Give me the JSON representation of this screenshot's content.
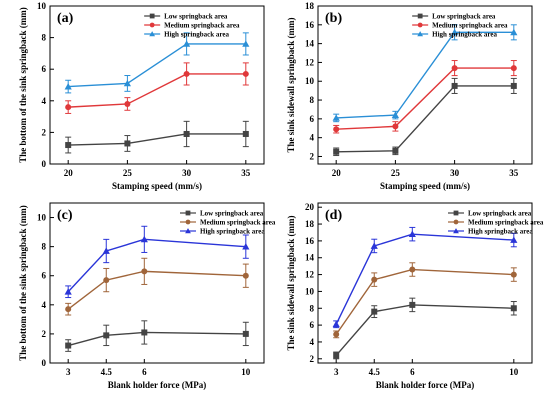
{
  "colors": {
    "low": "#444444",
    "medium": "#e0383a",
    "high": "#2a8fd6",
    "medium_bottom": "#a0653a",
    "high_bottom": "#2a35d8"
  },
  "chart_data": [
    {
      "panel": "(a)",
      "type": "line",
      "x": [
        20,
        25,
        30,
        35
      ],
      "xticks": [
        "20",
        "25",
        "30",
        "35"
      ],
      "xlabel": "Stamping speed (mm/s)",
      "ylabel": "The bottom of the sink springback (mm)",
      "ylim": [
        0,
        10
      ],
      "yticks": [
        "0",
        "2",
        "4",
        "6",
        "8",
        "10"
      ],
      "legend": "top-left",
      "series": [
        {
          "name": "Low springback area",
          "values": [
            1.2,
            1.3,
            1.9,
            1.9
          ],
          "error": [
            0.5,
            0.5,
            0.8,
            0.8
          ],
          "marker": "square",
          "color": "low"
        },
        {
          "name": "Medium springback area",
          "values": [
            3.6,
            3.8,
            5.7,
            5.7
          ],
          "error": [
            0.4,
            0.4,
            0.7,
            0.7
          ],
          "marker": "circle",
          "color": "medium"
        },
        {
          "name": "High springback area",
          "values": [
            4.9,
            5.1,
            7.6,
            7.6
          ],
          "error": [
            0.4,
            0.5,
            0.7,
            0.7
          ],
          "marker": "triangle",
          "color": "high"
        }
      ]
    },
    {
      "panel": "(b)",
      "type": "line",
      "x": [
        20,
        25,
        30,
        35
      ],
      "xticks": [
        "20",
        "25",
        "30",
        "35"
      ],
      "xlabel": "Stamping speed (mm/s)",
      "ylabel": "The sink sidewall springback (mm)",
      "ylim": [
        1.2,
        18
      ],
      "yticks": [
        "2",
        "4",
        "6",
        "8",
        "10",
        "12",
        "14",
        "16",
        "18"
      ],
      "legend": "top-left",
      "series": [
        {
          "name": "Low springback area",
          "values": [
            2.5,
            2.6,
            9.5,
            9.5
          ],
          "error": [
            0.4,
            0.4,
            0.8,
            0.8
          ],
          "marker": "square",
          "color": "low"
        },
        {
          "name": "Medium springback area",
          "values": [
            4.9,
            5.2,
            11.4,
            11.4
          ],
          "error": [
            0.4,
            0.5,
            0.8,
            0.8
          ],
          "marker": "circle",
          "color": "medium"
        },
        {
          "name": "High springback area",
          "values": [
            6.1,
            6.4,
            15.2,
            15.2
          ],
          "error": [
            0.4,
            0.4,
            0.8,
            0.8
          ],
          "marker": "triangle",
          "color": "high"
        }
      ]
    },
    {
      "panel": "(c)",
      "type": "line",
      "x": [
        3,
        4.5,
        6,
        10
      ],
      "xticks": [
        "3",
        "4.5",
        "6",
        "10"
      ],
      "xlabel": "Blank holder force (MPa)",
      "ylabel": "The bottom of the sink springback (mm)",
      "ylim": [
        0,
        11
      ],
      "yticks": [
        "0",
        "2",
        "4",
        "6",
        "8",
        "10"
      ],
      "legend": "top-right",
      "series": [
        {
          "name": "Low springback area",
          "values": [
            1.2,
            1.9,
            2.1,
            2.0
          ],
          "error": [
            0.4,
            0.7,
            0.8,
            0.8
          ],
          "marker": "square",
          "color": "low"
        },
        {
          "name": "Medium springback area",
          "values": [
            3.7,
            5.7,
            6.3,
            6.0
          ],
          "error": [
            0.4,
            0.8,
            0.9,
            0.8
          ],
          "marker": "circle",
          "color": "medium_bottom"
        },
        {
          "name": "High springback area",
          "values": [
            4.9,
            7.7,
            8.5,
            8.0
          ],
          "error": [
            0.4,
            0.8,
            0.9,
            0.8
          ],
          "marker": "triangle",
          "color": "high_bottom"
        }
      ]
    },
    {
      "panel": "(d)",
      "type": "line",
      "x": [
        3,
        4.5,
        6,
        10
      ],
      "xticks": [
        "3",
        "4.5",
        "6",
        "10"
      ],
      "xlabel": "Blank holder force (MPa)",
      "ylabel": "The sink sidewall springback (mm)",
      "ylim": [
        1.5,
        20.5
      ],
      "yticks": [
        "2",
        "4",
        "6",
        "8",
        "10",
        "12",
        "14",
        "16",
        "18",
        "20"
      ],
      "legend": "top-right",
      "series": [
        {
          "name": "Low springback area",
          "values": [
            2.4,
            7.6,
            8.4,
            8.0
          ],
          "error": [
            0.4,
            0.7,
            0.8,
            0.8
          ],
          "marker": "square",
          "color": "low"
        },
        {
          "name": "Medium springback area",
          "values": [
            4.9,
            11.4,
            12.6,
            12.0
          ],
          "error": [
            0.4,
            0.8,
            0.8,
            0.8
          ],
          "marker": "circle",
          "color": "medium_bottom"
        },
        {
          "name": "High springback area",
          "values": [
            6.1,
            15.4,
            16.8,
            16.1
          ],
          "error": [
            0.4,
            0.8,
            0.8,
            0.8
          ],
          "marker": "triangle",
          "color": "high_bottom"
        }
      ]
    }
  ]
}
